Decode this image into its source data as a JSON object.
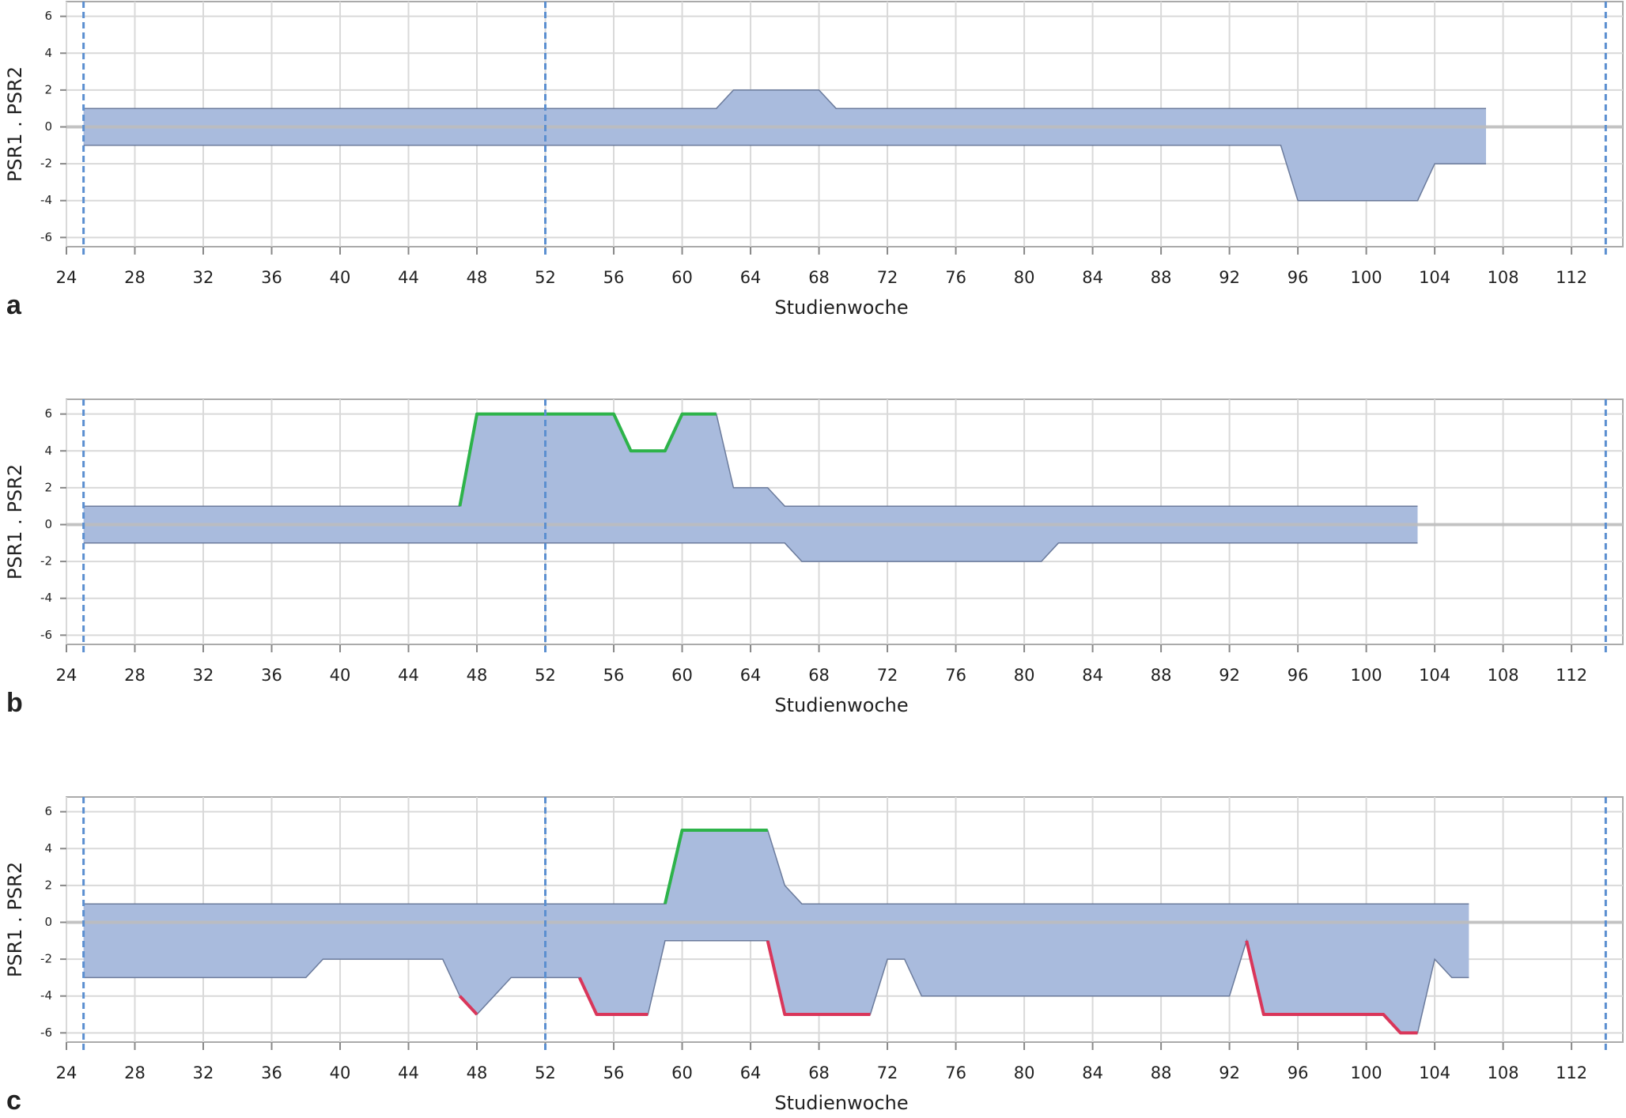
{
  "chart_data": [
    {
      "type": "band",
      "panel_label": "a",
      "xlabel": "Studienwoche",
      "ylabel": "PSR1 . PSR2",
      "x": [
        25,
        62,
        63,
        68,
        69,
        95,
        96,
        103,
        104,
        107
      ],
      "range": {
        "color": "#a9bbdd",
        "edge_color": "#6b7b9c",
        "upper": [
          1,
          1,
          2,
          2,
          1,
          1,
          1,
          1,
          1,
          1
        ],
        "lower": [
          -1,
          -1,
          -1,
          -1,
          -1,
          -1,
          -4,
          -4,
          -2,
          -2
        ]
      },
      "highlights": [],
      "xlim": [
        24,
        115
      ],
      "xticks": [
        24,
        28,
        32,
        36,
        40,
        44,
        48,
        52,
        56,
        60,
        64,
        68,
        72,
        76,
        80,
        84,
        88,
        92,
        96,
        100,
        104,
        108,
        112
      ],
      "ylim": [
        -6.5,
        6.8
      ],
      "yticks": [
        -6,
        -4,
        -2,
        0,
        2,
        4,
        6
      ],
      "grid": true,
      "baseline": 0,
      "vlines": [
        25,
        52,
        114
      ]
    },
    {
      "type": "band",
      "panel_label": "b",
      "xlabel": "Studienwoche",
      "ylabel": "PSR1 . PSR2",
      "x": [
        25,
        47,
        48,
        56,
        57,
        59,
        60,
        62,
        63,
        65,
        66,
        67,
        81,
        82,
        103
      ],
      "range": {
        "color": "#a9bbdd",
        "edge_color": "#6b7b9c",
        "upper": [
          1,
          1,
          6,
          6,
          4,
          4,
          6,
          6,
          2,
          2,
          1,
          1,
          1,
          1,
          1
        ],
        "lower": [
          -1,
          -1,
          -1,
          -1,
          -1,
          -1,
          -1,
          -1,
          -1,
          -1,
          -1,
          -2,
          -2,
          -1,
          -1
        ]
      },
      "highlights": [
        {
          "color": "#2db34a",
          "values": [
            null,
            1,
            6,
            6,
            4,
            4,
            6,
            6,
            null,
            null,
            null,
            null,
            null,
            null,
            null
          ]
        }
      ],
      "xlim": [
        24,
        115
      ],
      "xticks": [
        24,
        28,
        32,
        36,
        40,
        44,
        48,
        52,
        56,
        60,
        64,
        68,
        72,
        76,
        80,
        84,
        88,
        92,
        96,
        100,
        104,
        108,
        112
      ],
      "ylim": [
        -6.5,
        6.8
      ],
      "yticks": [
        -6,
        -4,
        -2,
        0,
        2,
        4,
        6
      ],
      "grid": true,
      "baseline": 0,
      "vlines": [
        25,
        52,
        114
      ]
    },
    {
      "type": "band",
      "panel_label": "c",
      "xlabel": "Studienwoche",
      "ylabel": "PSR1 . PSR2",
      "x": [
        25,
        38,
        39,
        46,
        47,
        48,
        50,
        54,
        55,
        58,
        59,
        60,
        65,
        66,
        67,
        71,
        72,
        73,
        74,
        92,
        93,
        94,
        101,
        102,
        103,
        104,
        105,
        106
      ],
      "range": {
        "color": "#a9bbdd",
        "edge_color": "#6b7b9c",
        "upper": [
          1,
          1,
          1,
          1,
          1,
          1,
          1,
          1,
          1,
          1,
          1,
          5,
          5,
          2,
          1,
          1,
          1,
          1,
          1,
          1,
          1,
          1,
          1,
          1,
          1,
          1,
          1,
          1
        ],
        "lower": [
          -3,
          -3,
          -2,
          -2,
          -4,
          -5,
          -3,
          -3,
          -5,
          -5,
          -1,
          -1,
          -1,
          -5,
          -5,
          -5,
          -2,
          -2,
          -4,
          -4,
          -1,
          -5,
          -5,
          -6,
          -6,
          -2,
          -3,
          -3
        ]
      },
      "highlights": [
        {
          "color": "#2db34a",
          "values": [
            null,
            null,
            null,
            null,
            null,
            null,
            null,
            null,
            null,
            null,
            1,
            5,
            5,
            null,
            null,
            null,
            null,
            null,
            null,
            null,
            null,
            null,
            null,
            null,
            null,
            null,
            null,
            null
          ]
        },
        {
          "color": "#d9365a",
          "values": [
            null,
            null,
            null,
            null,
            -4,
            -5,
            null,
            -3,
            -5,
            -5,
            null,
            null,
            -1,
            -5,
            -5,
            -5,
            null,
            null,
            null,
            null,
            -1,
            -5,
            -5,
            -6,
            -6,
            null,
            null,
            null
          ]
        }
      ],
      "xlim": [
        24,
        115
      ],
      "xticks": [
        24,
        28,
        32,
        36,
        40,
        44,
        48,
        52,
        56,
        60,
        64,
        68,
        72,
        76,
        80,
        84,
        88,
        92,
        96,
        100,
        104,
        108,
        112
      ],
      "ylim": [
        -6.5,
        6.8
      ],
      "yticks": [
        -6,
        -4,
        -2,
        0,
        2,
        4,
        6
      ],
      "grid": true,
      "baseline": 0,
      "vlines": [
        25,
        52,
        114
      ]
    }
  ]
}
